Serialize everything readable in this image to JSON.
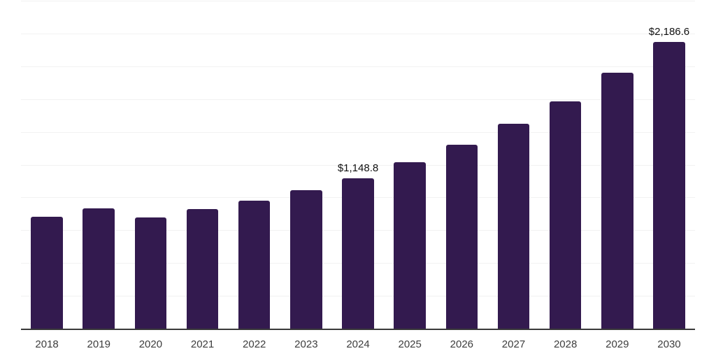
{
  "chart_data": {
    "type": "bar",
    "title": "",
    "xlabel": "",
    "ylabel": "",
    "categories": [
      "2018",
      "2019",
      "2020",
      "2021",
      "2022",
      "2023",
      "2024",
      "2025",
      "2026",
      "2027",
      "2028",
      "2029",
      "2030"
    ],
    "values": [
      855,
      915,
      850,
      910,
      975,
      1055,
      1148.8,
      1270,
      1400,
      1560,
      1735,
      1950,
      2186.6
    ],
    "value_labels": {
      "2024": "$1,148.8",
      "2030": "$2,186.6"
    },
    "ylim": [
      0,
      2500
    ],
    "gridline_interval": 250,
    "grid": "horizontal-only",
    "y_tick_labels_visible": false,
    "legend_position": "none",
    "colors": {
      "bar": "#331a4f",
      "axis_line": "#3a3a3a",
      "gridline": "#f2f2f2",
      "value_label": "#111111",
      "tick_label": "#3d3d3d",
      "background": "#ffffff"
    }
  }
}
